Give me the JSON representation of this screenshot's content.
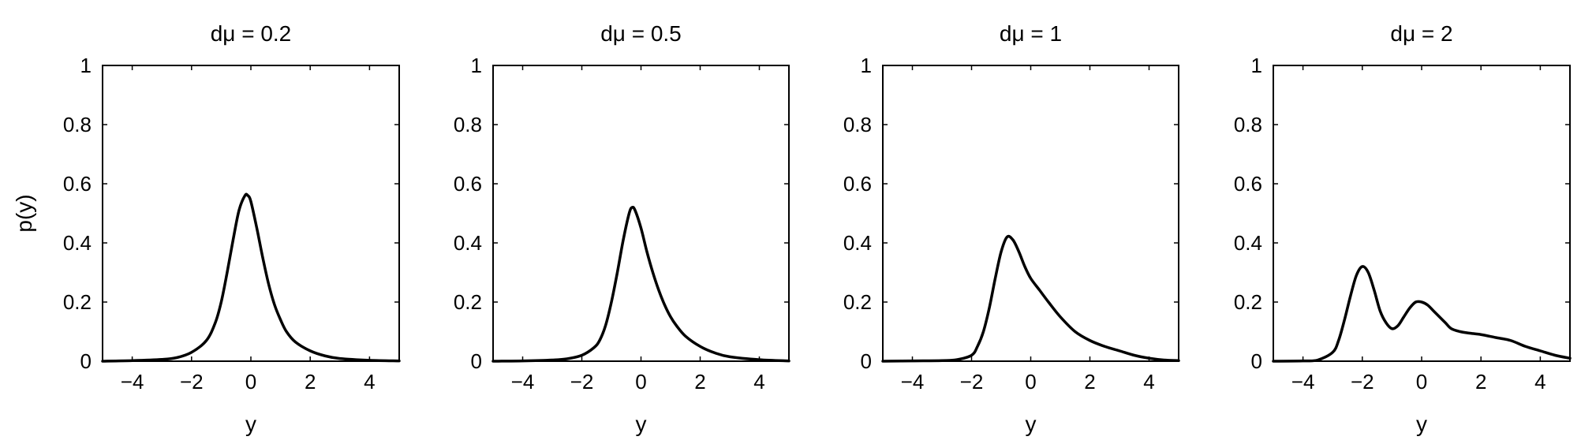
{
  "chart_data": [
    {
      "type": "line",
      "title": "dμ = 0.2",
      "xlabel": "y",
      "ylabel": "p(y)",
      "xlim": [
        -5,
        5
      ],
      "ylim": [
        0,
        1
      ],
      "xticks": [
        "−4",
        "−2",
        "0",
        "2",
        "4"
      ],
      "yticks": [
        "0",
        "0.2",
        "0.4",
        "0.6",
        "0.8",
        "1"
      ],
      "series": [
        {
          "x": [
            -5,
            -4,
            -3,
            -2.5,
            -2,
            -1.5,
            -1.2,
            -1,
            -0.8,
            -0.6,
            -0.4,
            -0.2,
            -0.1,
            0,
            0.2,
            0.4,
            0.6,
            0.8,
            1,
            1.2,
            1.5,
            2,
            2.5,
            3,
            4,
            5
          ],
          "y": [
            0,
            0.002,
            0.006,
            0.012,
            0.03,
            0.07,
            0.13,
            0.2,
            0.3,
            0.41,
            0.51,
            0.56,
            0.56,
            0.54,
            0.45,
            0.35,
            0.26,
            0.19,
            0.14,
            0.1,
            0.065,
            0.035,
            0.018,
            0.009,
            0.003,
            0.001
          ]
        }
      ]
    },
    {
      "type": "line",
      "title": "dμ = 0.5",
      "xlabel": "y",
      "ylabel": "",
      "xlim": [
        -5,
        5
      ],
      "ylim": [
        0,
        1
      ],
      "xticks": [
        "−4",
        "−2",
        "0",
        "2",
        "4"
      ],
      "yticks": [
        "0",
        "0.2",
        "0.4",
        "0.6",
        "0.8",
        "1"
      ],
      "series": [
        {
          "x": [
            -5,
            -4,
            -3,
            -2.5,
            -2,
            -1.6,
            -1.4,
            -1.2,
            -1,
            -0.8,
            -0.6,
            -0.4,
            -0.3,
            -0.2,
            0,
            0.2,
            0.4,
            0.6,
            0.8,
            1,
            1.2,
            1.5,
            2,
            2.5,
            3,
            4,
            5
          ],
          "y": [
            0,
            0.001,
            0.004,
            0.008,
            0.02,
            0.045,
            0.07,
            0.12,
            0.2,
            0.3,
            0.41,
            0.5,
            0.52,
            0.51,
            0.45,
            0.37,
            0.3,
            0.24,
            0.19,
            0.15,
            0.12,
            0.085,
            0.05,
            0.028,
            0.015,
            0.005,
            0.001
          ]
        }
      ]
    },
    {
      "type": "line",
      "title": "dμ = 1",
      "xlabel": "y",
      "ylabel": "",
      "xlim": [
        -5,
        5
      ],
      "ylim": [
        0,
        1
      ],
      "xticks": [
        "−4",
        "−2",
        "0",
        "2",
        "4"
      ],
      "yticks": [
        "0",
        "0.2",
        "0.4",
        "0.6",
        "0.8",
        "1"
      ],
      "series": [
        {
          "x": [
            -5,
            -4,
            -3,
            -2.5,
            -2,
            -1.8,
            -1.6,
            -1.4,
            -1.2,
            -1,
            -0.8,
            -0.6,
            -0.4,
            -0.2,
            0,
            0.3,
            0.6,
            1,
            1.5,
            2,
            2.5,
            3,
            3.5,
            4,
            4.5,
            5
          ],
          "y": [
            0,
            0.001,
            0.002,
            0.005,
            0.02,
            0.05,
            0.1,
            0.18,
            0.28,
            0.37,
            0.42,
            0.41,
            0.37,
            0.32,
            0.28,
            0.24,
            0.2,
            0.15,
            0.1,
            0.07,
            0.05,
            0.035,
            0.02,
            0.01,
            0.004,
            0.002
          ]
        }
      ]
    },
    {
      "type": "line",
      "title": "dμ = 2",
      "xlabel": "y",
      "ylabel": "",
      "xlim": [
        -5,
        5
      ],
      "ylim": [
        0,
        1
      ],
      "xticks": [
        "−4",
        "−2",
        "0",
        "2",
        "4"
      ],
      "yticks": [
        "0",
        "0.2",
        "0.4",
        "0.6",
        "0.8",
        "1"
      ],
      "series": [
        {
          "x": [
            -5,
            -4,
            -3.5,
            -3,
            -2.8,
            -2.6,
            -2.4,
            -2.2,
            -2,
            -1.8,
            -1.6,
            -1.4,
            -1.2,
            -1,
            -0.8,
            -0.6,
            -0.4,
            -0.2,
            0,
            0.2,
            0.4,
            0.6,
            0.8,
            1,
            1.3,
            1.6,
            2,
            2.5,
            3,
            3.5,
            4,
            4.5,
            5
          ],
          "y": [
            0,
            0.001,
            0.004,
            0.03,
            0.07,
            0.14,
            0.22,
            0.29,
            0.32,
            0.3,
            0.24,
            0.17,
            0.13,
            0.11,
            0.12,
            0.15,
            0.18,
            0.2,
            0.2,
            0.19,
            0.17,
            0.15,
            0.13,
            0.11,
            0.1,
            0.095,
            0.09,
            0.08,
            0.07,
            0.05,
            0.035,
            0.02,
            0.01
          ]
        }
      ]
    }
  ]
}
